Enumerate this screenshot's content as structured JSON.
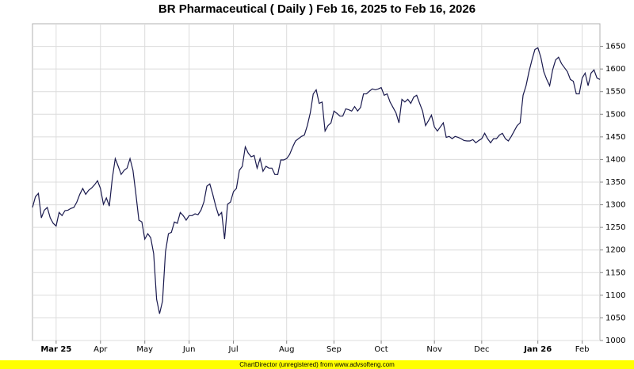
{
  "chart_data": {
    "type": "line",
    "title": "BR Pharmaceutical ( Daily ) Feb 16, 2025 to Feb 16, 2026",
    "footer": "ChartDirector (unregistered) from www.advsofteng.com",
    "categories": [
      null,
      null,
      null,
      null,
      null,
      null,
      null,
      null,
      "Mar 25",
      null,
      null,
      null,
      null,
      null,
      null,
      null,
      null,
      null,
      null,
      null,
      null,
      null,
      null,
      "Apr",
      null,
      null,
      null,
      null,
      null,
      null,
      null,
      null,
      null,
      null,
      null,
      null,
      null,
      null,
      "May",
      null,
      null,
      null,
      null,
      null,
      null,
      null,
      null,
      null,
      null,
      null,
      null,
      null,
      null,
      "Jun",
      null,
      null,
      null,
      null,
      null,
      null,
      null,
      null,
      null,
      null,
      null,
      null,
      null,
      null,
      "Jul",
      null,
      null,
      null,
      null,
      null,
      null,
      null,
      null,
      null,
      null,
      null,
      null,
      null,
      null,
      null,
      null,
      null,
      "Aug",
      null,
      null,
      null,
      null,
      null,
      null,
      null,
      null,
      null,
      null,
      null,
      null,
      null,
      null,
      null,
      "Sep",
      null,
      null,
      null,
      null,
      null,
      null,
      null,
      null,
      null,
      null,
      null,
      null,
      null,
      null,
      null,
      "Oct",
      null,
      null,
      null,
      null,
      null,
      null,
      null,
      null,
      null,
      null,
      null,
      null,
      null,
      null,
      null,
      null,
      null,
      "Nov",
      null,
      null,
      null,
      null,
      null,
      null,
      null,
      null,
      null,
      null,
      null,
      null,
      null,
      null,
      null,
      "Dec",
      null,
      null,
      null,
      null,
      null,
      null,
      null,
      null,
      null,
      null,
      null,
      null,
      null,
      null,
      null,
      null,
      null,
      null,
      "Jan 26",
      null,
      null,
      null,
      null,
      null,
      null,
      null,
      null,
      null,
      null,
      null,
      null,
      null,
      null,
      "Feb",
      null,
      null,
      null,
      null,
      null,
      null
    ],
    "series": [
      {
        "color": "#1a1a4e",
        "values": [
          1294,
          1318,
          1325,
          1271,
          1288,
          1294,
          1271,
          1259,
          1253,
          1283,
          1276,
          1287,
          1288,
          1292,
          1294,
          1306,
          1323,
          1336,
          1323,
          1332,
          1337,
          1344,
          1353,
          1336,
          1301,
          1315,
          1297,
          1358,
          1402,
          1385,
          1367,
          1376,
          1381,
          1402,
          1376,
          1323,
          1266,
          1262,
          1224,
          1236,
          1227,
          1192,
          1091,
          1059,
          1087,
          1196,
          1236,
          1239,
          1262,
          1259,
          1283,
          1276,
          1266,
          1276,
          1276,
          1280,
          1278,
          1288,
          1306,
          1341,
          1346,
          1323,
          1297,
          1276,
          1283,
          1224,
          1301,
          1306,
          1329,
          1336,
          1376,
          1385,
          1428,
          1414,
          1406,
          1409,
          1381,
          1402,
          1374,
          1385,
          1381,
          1381,
          1367,
          1367,
          1399,
          1399,
          1402,
          1411,
          1427,
          1441,
          1446,
          1451,
          1454,
          1475,
          1503,
          1545,
          1554,
          1524,
          1527,
          1463,
          1475,
          1481,
          1507,
          1502,
          1496,
          1496,
          1512,
          1510,
          1507,
          1517,
          1507,
          1515,
          1545,
          1545,
          1551,
          1556,
          1554,
          1556,
          1559,
          1542,
          1545,
          1527,
          1515,
          1503,
          1481,
          1533,
          1527,
          1533,
          1524,
          1538,
          1542,
          1524,
          1507,
          1475,
          1486,
          1498,
          1472,
          1463,
          1472,
          1481,
          1449,
          1451,
          1446,
          1451,
          1449,
          1446,
          1442,
          1441,
          1441,
          1444,
          1437,
          1442,
          1446,
          1458,
          1446,
          1437,
          1446,
          1446,
          1454,
          1458,
          1446,
          1441,
          1451,
          1463,
          1475,
          1481,
          1542,
          1563,
          1594,
          1620,
          1643,
          1647,
          1626,
          1594,
          1577,
          1563,
          1598,
          1620,
          1626,
          1612,
          1603,
          1594,
          1577,
          1573,
          1545,
          1545,
          1580,
          1591,
          1563,
          1591,
          1598,
          1580,
          1577
        ]
      }
    ],
    "ylim": [
      1000,
      1700
    ],
    "yticks": [
      1000,
      1050,
      1100,
      1150,
      1200,
      1250,
      1300,
      1350,
      1400,
      1450,
      1500,
      1550,
      1600,
      1650
    ],
    "grid": true
  }
}
